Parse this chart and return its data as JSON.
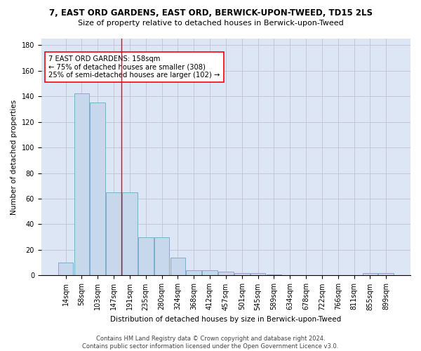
{
  "title": "7, EAST ORD GARDENS, EAST ORD, BERWICK-UPON-TWEED, TD15 2LS",
  "subtitle": "Size of property relative to detached houses in Berwick-upon-Tweed",
  "xlabel": "Distribution of detached houses by size in Berwick-upon-Tweed",
  "ylabel": "Number of detached properties",
  "bar_color": "#c8d8ec",
  "bar_edge_color": "#7aaed0",
  "background_color": "#dce6f5",
  "grid_color": "#bbbbcc",
  "categories": [
    "14sqm",
    "58sqm",
    "103sqm",
    "147sqm",
    "191sqm",
    "235sqm",
    "280sqm",
    "324sqm",
    "368sqm",
    "412sqm",
    "457sqm",
    "501sqm",
    "545sqm",
    "589sqm",
    "634sqm",
    "678sqm",
    "722sqm",
    "766sqm",
    "811sqm",
    "855sqm",
    "899sqm"
  ],
  "values": [
    10,
    142,
    135,
    65,
    65,
    30,
    30,
    14,
    4,
    4,
    3,
    2,
    2,
    1,
    0,
    0,
    0,
    0,
    0,
    2,
    2
  ],
  "annotation_text": "7 EAST ORD GARDENS: 158sqm\n← 75% of detached houses are smaller (308)\n25% of semi-detached houses are larger (102) →",
  "vline_index": 4,
  "ylim": [
    0,
    185
  ],
  "yticks": [
    0,
    20,
    40,
    60,
    80,
    100,
    120,
    140,
    160,
    180
  ],
  "footer": "Contains HM Land Registry data © Crown copyright and database right 2024.\nContains public sector information licensed under the Open Government Licence v3.0.",
  "title_fontsize": 8.5,
  "subtitle_fontsize": 8.0,
  "axis_label_fontsize": 7.5,
  "tick_fontsize": 7.0,
  "annot_fontsize": 7.2,
  "footer_fontsize": 6.0
}
